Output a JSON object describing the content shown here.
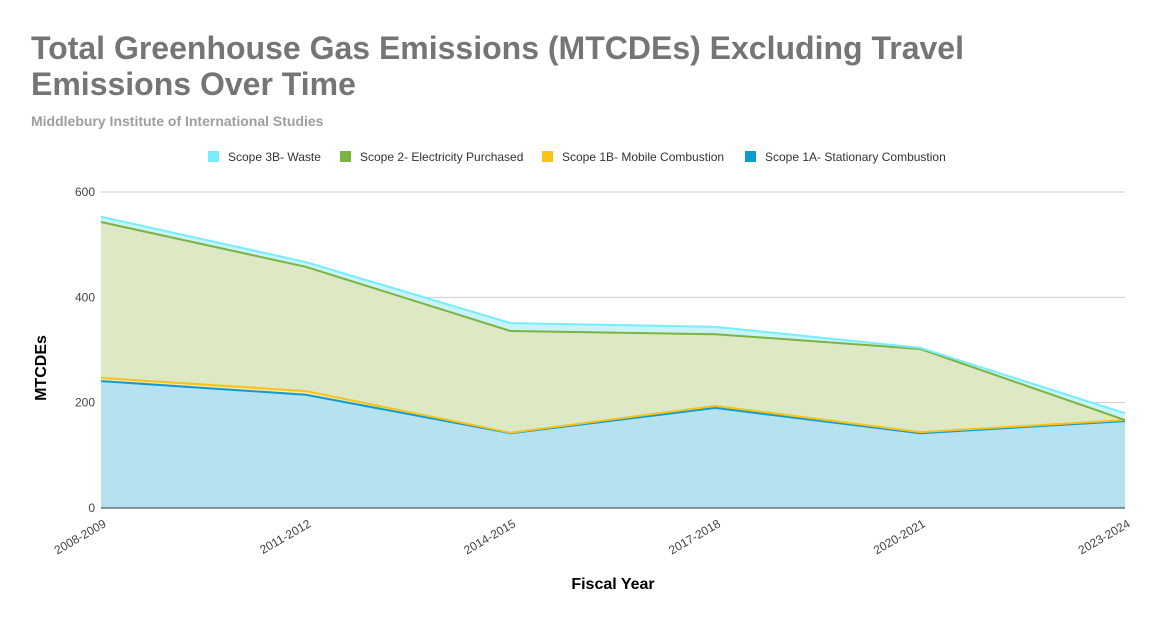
{
  "chart_data": {
    "type": "area",
    "stacked": true,
    "title": "Total Greenhouse Gas Emissions (MTCDEs) Excluding Travel Emissions Over Time",
    "subtitle": "Middlebury Institute of International Studies",
    "xlabel": "Fiscal Year",
    "ylabel": "MTCDEs",
    "ylim": [
      0,
      600
    ],
    "yticks": [
      0,
      200,
      400,
      600
    ],
    "grid": true,
    "legend_position": "top",
    "categories": [
      "2008-2009",
      "2011-2012",
      "2014-2015",
      "2017-2018",
      "2020-2021",
      "2023-2024"
    ],
    "series": [
      {
        "name": "Scope 1A- Stationary Combustion",
        "values": [
          241,
          215,
          142,
          190,
          142,
          165
        ],
        "color": "#0f9bd0",
        "fill": "#b6e1ee"
      },
      {
        "name": "Scope 1B- Mobile Combustion",
        "values": [
          6,
          7,
          1,
          4,
          2,
          2
        ],
        "color": "#f6c21b",
        "fill": "#fbe7a6"
      },
      {
        "name": "Scope 2- Electricity Purchased",
        "values": [
          296,
          236,
          193,
          136,
          158,
          0
        ],
        "color": "#7cb342",
        "fill": "#dce9c4"
      },
      {
        "name": "Scope 3B- Waste",
        "values": [
          10,
          9,
          15,
          14,
          2,
          13
        ],
        "color": "#77ecfa",
        "fill": "#c8f4f9"
      }
    ],
    "legend_order": [
      3,
      2,
      1,
      0
    ]
  }
}
